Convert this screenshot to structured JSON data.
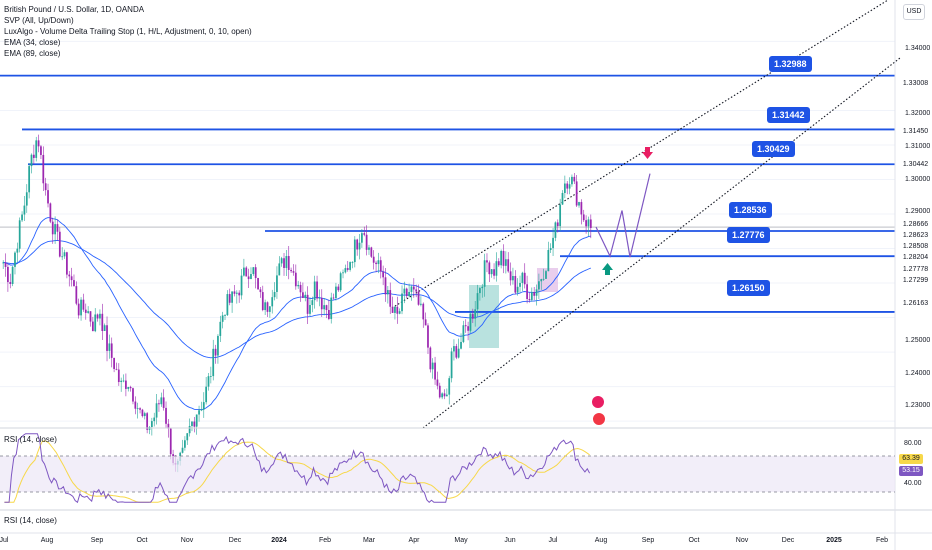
{
  "legend": {
    "title": "British Pound / U.S. Dollar, 1D, OANDA",
    "lines": [
      "SVP (All, Up/Down)",
      "LuxAlgo - Volume Delta Trailing Stop (1, H/L, Adjustment, 0, 10, open)",
      "EMA (34, close)",
      "EMA (89, close)"
    ]
  },
  "currency_button": "USD",
  "price_axis_ticks": [
    "1.34000",
    "1.32000",
    "1.31000",
    "1.30000",
    "1.29000",
    "1.25000",
    "1.24000",
    "1.23000"
  ],
  "price_tags": [
    {
      "value": "1.33008",
      "bg": "#ffffff",
      "border": "#1e53e5",
      "color": "#131722"
    },
    {
      "value": "1.31450",
      "bg": "#ffffff",
      "border": "#1e53e5",
      "color": "#131722"
    },
    {
      "value": "1.30442",
      "bg": "#ffffff",
      "border": "#1e53e5",
      "color": "#131722"
    },
    {
      "value": "1.28666",
      "bg": "#ffffff",
      "border": "#9598a1",
      "color": "#131722"
    },
    {
      "value": "1.28623",
      "bg": "#f23645",
      "border": "#f23645",
      "color": "#ffffff"
    },
    {
      "value": "1.28508",
      "bg": "#ffffff",
      "border": "#1e53e5",
      "color": "#131722"
    },
    {
      "value": "1.28204",
      "bg": "#ffffff",
      "border": "#1e53e5",
      "color": "#131722"
    },
    {
      "value": "1.27778",
      "bg": "#ffffff",
      "border": "#1e53e5",
      "color": "#131722"
    },
    {
      "value": "1.27299",
      "bg": "#ffffff",
      "border": "#1e53e5",
      "color": "#131722"
    },
    {
      "value": "1.26163",
      "bg": "#ffffff",
      "border": "#1e53e5",
      "color": "#131722"
    }
  ],
  "callouts": [
    "1.32988",
    "1.31442",
    "1.30429",
    "1.28536",
    "1.27776",
    "1.26150"
  ],
  "rsi": {
    "label_top": "RSI (14, close)",
    "label_bottom": "RSI (14, close)",
    "scale": [
      "80.00",
      "40.00"
    ],
    "value_tags": [
      {
        "value": "63.39",
        "bg": "#f7d84a"
      },
      {
        "value": "53.15",
        "bg": "#7e57c2"
      }
    ]
  },
  "time_axis": [
    "Jul",
    "Aug",
    "Sep",
    "Oct",
    "Nov",
    "Dec",
    "2024",
    "Feb",
    "Mar",
    "Apr",
    "May",
    "Jun",
    "Jul",
    "Aug",
    "Sep",
    "Oct",
    "Nov",
    "Dec",
    "2025",
    "Feb"
  ],
  "colors": {
    "up": "#26a69a",
    "down": "#9c27b0",
    "level": "#1e53e5",
    "ema34": "#2962ff",
    "ema89": "#2962ff",
    "rsi": "#7e57c2",
    "rsi_ma": "#f7d84a",
    "arrow_down": "#e91e63",
    "arrow_up": "#089981"
  },
  "chart_data": {
    "type": "candlestick",
    "title": "British Pound / U.S. Dollar, 1D, OANDA",
    "ylim": [
      1.228,
      1.352
    ],
    "levels": [
      1.33008,
      1.3145,
      1.30442,
      1.28508,
      1.27778,
      1.26163
    ],
    "last_price": 1.28623,
    "projection": [
      1.28623,
      1.2778,
      1.291,
      1.2775,
      1.3017
    ],
    "close_path": [
      1.276,
      1.271,
      1.282,
      1.292,
      1.3055,
      1.313,
      1.298,
      1.288,
      1.281,
      1.2755,
      1.27,
      1.262,
      1.263,
      1.258,
      1.262,
      1.252,
      1.247,
      1.24,
      1.242,
      1.237,
      1.231,
      1.228,
      1.232,
      1.238,
      1.225,
      1.215,
      1.22,
      1.228,
      1.233,
      1.236,
      1.244,
      1.255,
      1.263,
      1.265,
      1.268,
      1.273,
      1.275,
      1.266,
      1.262,
      1.269,
      1.274,
      1.278,
      1.273,
      1.269,
      1.263,
      1.27,
      1.265,
      1.262,
      1.267,
      1.271,
      1.276,
      1.281,
      1.287,
      1.279,
      1.275,
      1.272,
      1.262,
      1.26,
      1.266,
      1.268,
      1.264,
      1.257,
      1.245,
      1.238,
      1.235,
      1.25,
      1.252,
      1.257,
      1.262,
      1.27,
      1.276,
      1.274,
      1.278,
      1.273,
      1.269,
      1.271,
      1.267,
      1.268,
      1.273,
      1.279,
      1.286,
      1.299,
      1.301,
      1.295,
      1.289,
      1.286
    ]
  }
}
